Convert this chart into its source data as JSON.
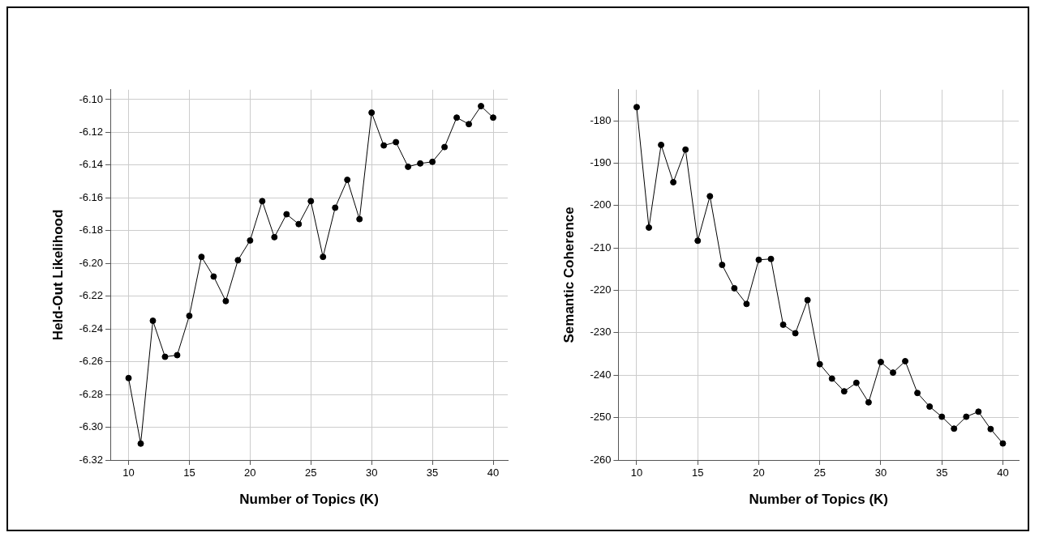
{
  "chart_data": [
    {
      "type": "line",
      "xlabel": "Number of Topics (K)",
      "ylabel": "Held-Out Likelihood",
      "x": [
        10,
        11,
        12,
        13,
        14,
        15,
        16,
        17,
        18,
        19,
        20,
        21,
        22,
        23,
        24,
        25,
        26,
        27,
        28,
        29,
        30,
        31,
        32,
        33,
        34,
        35,
        36,
        37,
        38,
        39,
        40
      ],
      "series": [
        {
          "color": "#000000",
          "values": [
            -6.27,
            -6.31,
            -6.235,
            -6.257,
            -6.256,
            -6.232,
            -6.196,
            -6.208,
            -6.223,
            -6.198,
            -6.186,
            -6.162,
            -6.184,
            -6.17,
            -6.176,
            -6.162,
            -6.196,
            -6.166,
            -6.149,
            -6.173,
            -6.108,
            -6.128,
            -6.126,
            -6.141,
            -6.139,
            -6.138,
            -6.129,
            -6.111,
            -6.115,
            -6.104,
            -6.111
          ]
        }
      ],
      "xlim": [
        8.5,
        41.2
      ],
      "xticks": [
        10,
        15,
        20,
        25,
        30,
        35,
        40
      ],
      "ylim": [
        -6.32,
        -6.094
      ],
      "yticks": [
        {
          "value": -6.32,
          "label": "-6.32"
        },
        {
          "value": -6.3,
          "label": "-6.30"
        },
        {
          "value": -6.28,
          "label": "-6.28"
        },
        {
          "value": -6.26,
          "label": "-6.26"
        },
        {
          "value": -6.24,
          "label": "-6.24"
        },
        {
          "value": -6.22,
          "label": "-6.22"
        },
        {
          "value": -6.2,
          "label": "-6.20"
        },
        {
          "value": -6.18,
          "label": "-6.18"
        },
        {
          "value": -6.16,
          "label": "-6.16"
        },
        {
          "value": -6.14,
          "label": "-6.14"
        },
        {
          "value": -6.12,
          "label": "-6.12"
        },
        {
          "value": -6.1,
          "label": "-6.10"
        }
      ],
      "grid": true,
      "marker": "circle",
      "line_style": "solid",
      "legend": false
    },
    {
      "type": "line",
      "xlabel": "Number of Topics (K)",
      "ylabel": "Semantic Coherence",
      "x": [
        10,
        11,
        12,
        13,
        14,
        15,
        16,
        17,
        18,
        19,
        20,
        21,
        22,
        23,
        24,
        25,
        26,
        27,
        28,
        29,
        30,
        31,
        32,
        33,
        34,
        35,
        36,
        37,
        38,
        39,
        40
      ],
      "series": [
        {
          "color": "#000000",
          "values": [
            -176.8,
            -205.2,
            -185.7,
            -194.5,
            -186.8,
            -208.3,
            -197.8,
            -214,
            -219.5,
            -223.2,
            -212.8,
            -212.6,
            -228.1,
            -230.1,
            -222.3,
            -237.4,
            -240.8,
            -243.8,
            -241.8,
            -246.4,
            -236.9,
            -239.4,
            -236.7,
            -244.2,
            -247.4,
            -249.8,
            -252.6,
            -249.8,
            -248.6,
            -252.7,
            -256.1
          ]
        }
      ],
      "xlim": [
        8.5,
        41.3
      ],
      "xticks": [
        10,
        15,
        20,
        25,
        30,
        35,
        40
      ],
      "ylim": [
        -260,
        -172.7
      ],
      "yticks": [
        -260,
        -250,
        -240,
        -230,
        -220,
        -210,
        -200,
        -190,
        -180
      ],
      "grid": true,
      "marker": "circle",
      "line_style": "solid",
      "legend": false
    }
  ]
}
